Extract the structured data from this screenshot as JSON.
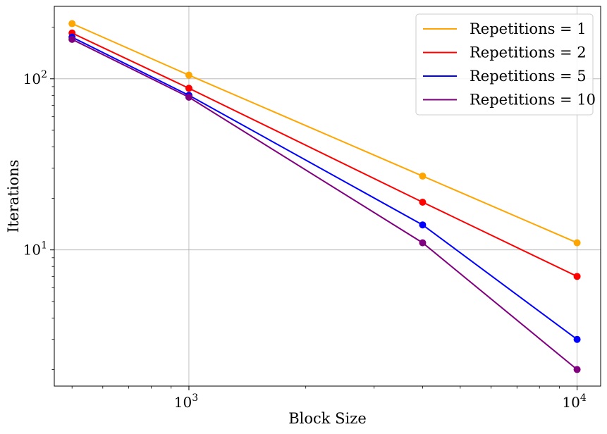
{
  "chart_data": {
    "type": "line",
    "title": "",
    "xlabel": "Block Size",
    "ylabel": "Iterations",
    "xscale": "log",
    "yscale": "log",
    "xlim": [
      450,
      11500
    ],
    "ylim": [
      1.6,
      265
    ],
    "x": [
      500,
      1000,
      4000,
      10000
    ],
    "x_ticks": [
      {
        "base": "10",
        "exp": "3",
        "value": 1000
      },
      {
        "base": "10",
        "exp": "4",
        "value": 10000
      }
    ],
    "y_ticks": [
      {
        "base": "10",
        "exp": "1",
        "value": 10
      },
      {
        "base": "10",
        "exp": "2",
        "value": 100
      }
    ],
    "grid": true,
    "legend_position": "top-right",
    "series": [
      {
        "name": "Repetitions = 1",
        "color": "#FFA500",
        "values": [
          210,
          105,
          27,
          11
        ]
      },
      {
        "name": "Repetitions = 2",
        "color": "#FF0000",
        "values": [
          185,
          88,
          19,
          7
        ]
      },
      {
        "name": "Repetitions = 5",
        "color": "#0000FF",
        "values": [
          175,
          80,
          14,
          3
        ]
      },
      {
        "name": "Repetitions = 10",
        "color": "#800080",
        "values": [
          170,
          78,
          11,
          2
        ]
      }
    ]
  }
}
